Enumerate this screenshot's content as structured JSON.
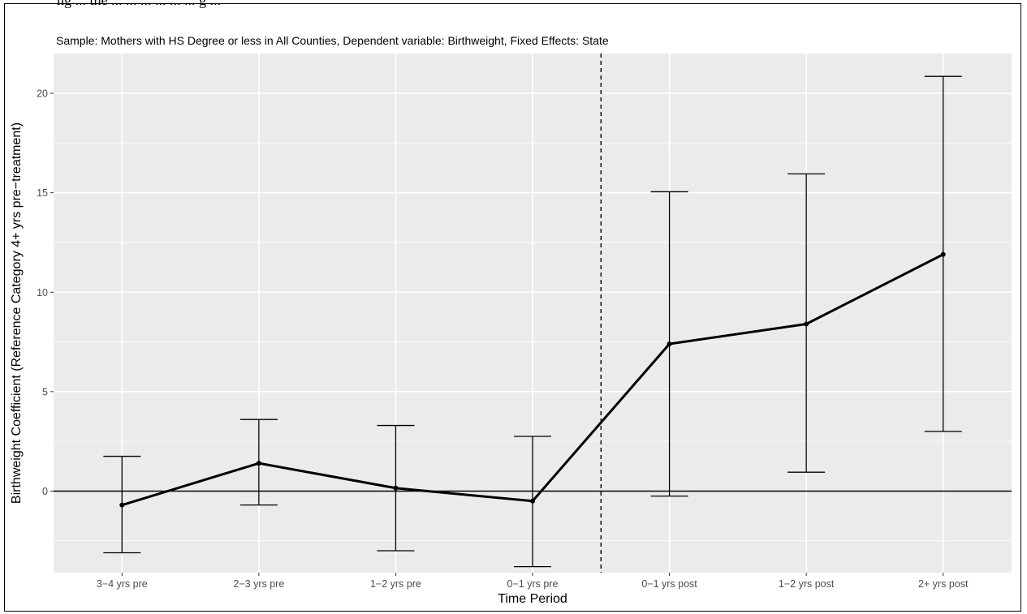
{
  "caption_fragment": "ng ... the ... ... ... ... ... ... g ...",
  "chart_data": {
    "type": "line",
    "title": "Sample: Mothers with HS Degree or less in All Counties, Dependent variable: Birthweight, Fixed Effects: State",
    "xlabel": "Time Period",
    "ylabel": "Birthweight Coefficient (Reference Category 4+ yrs pre−treatment)",
    "categories": [
      "3−4 yrs pre",
      "2−3 yrs pre",
      "1−2 yrs pre",
      "0−1 yrs pre",
      "0−1 yrs post",
      "1−2 yrs post",
      "2+ yrs post"
    ],
    "series": [
      {
        "values": [
          -0.7,
          1.4,
          0.15,
          -0.5,
          7.4,
          8.4,
          11.9
        ],
        "ci_low": [
          -3.1,
          -0.7,
          -3.0,
          -3.8,
          -0.25,
          0.95,
          3.0
        ],
        "ci_high": [
          1.75,
          3.6,
          3.3,
          2.75,
          15.05,
          15.95,
          20.85
        ]
      }
    ],
    "ylim": [
      -4.1,
      22.0
    ],
    "yticks": [
      0,
      5,
      10,
      15,
      20
    ],
    "reference_hline": 0,
    "reference_vline_between": [
      "0−1 yrs pre",
      "0−1 yrs post"
    ],
    "grid": true,
    "colors": {
      "panel": "#ebebeb",
      "grid": "#ffffff",
      "line": "#000000"
    }
  }
}
